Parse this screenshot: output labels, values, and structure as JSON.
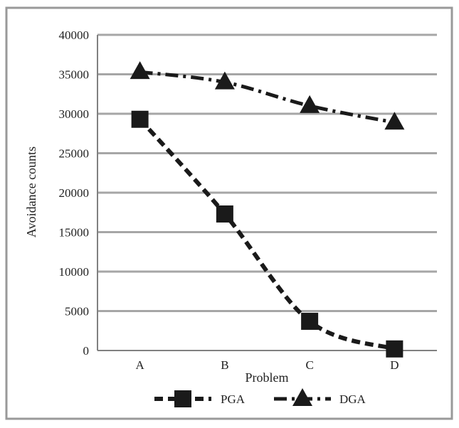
{
  "chart_data": {
    "type": "line",
    "categories": [
      "A",
      "B",
      "C",
      "D"
    ],
    "series": [
      {
        "name": "PGA",
        "values": [
          29300,
          17300,
          3700,
          200
        ],
        "marker": "square",
        "dash": "dashed"
      },
      {
        "name": "DGA",
        "values": [
          35300,
          34000,
          31000,
          28900
        ],
        "marker": "triangle",
        "dash": "dash-dot"
      }
    ],
    "xlabel": "Problem",
    "ylabel": "Avoidance counts",
    "ylim": [
      0,
      40000
    ],
    "yticks": [
      "0",
      "5000",
      "10000",
      "15000",
      "20000",
      "25000",
      "30000",
      "35000",
      "40000"
    ],
    "grid": true,
    "legend_position": "bottom",
    "colors": {
      "line": "#1a1a1a",
      "grid": "#a6a6a6",
      "frame": "#999999"
    }
  }
}
